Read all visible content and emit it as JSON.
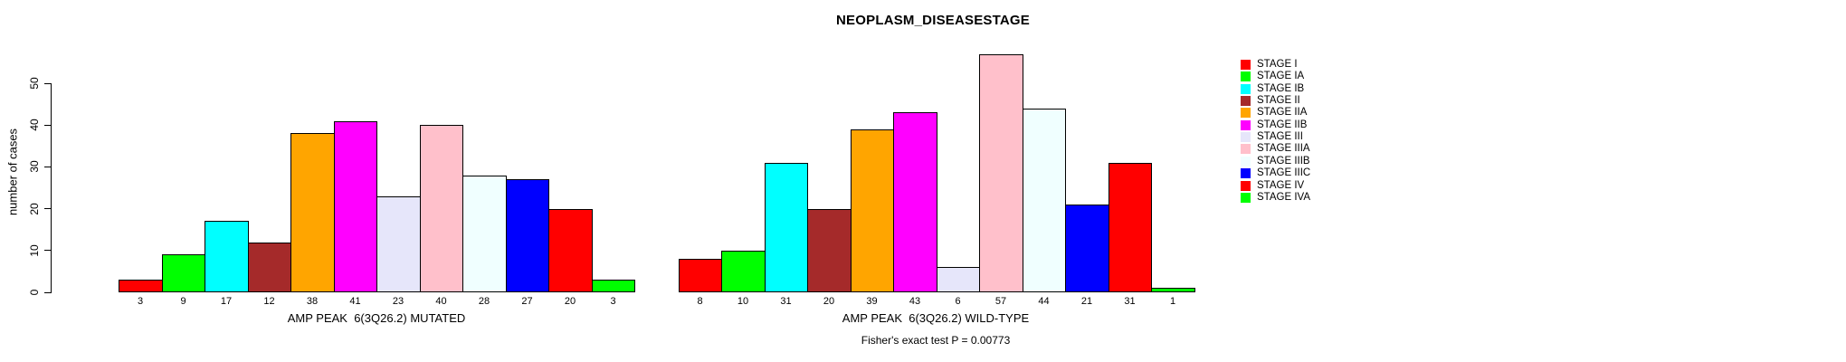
{
  "title": "NEOPLASM_DISEASESTAGE",
  "footer": "Fisher's exact test P = 0.00773",
  "y_axis": {
    "label": "number of cases",
    "ticks": [
      0,
      10,
      20,
      30,
      40,
      50
    ]
  },
  "legend": {
    "items": [
      {
        "label": "STAGE I",
        "color": "#FF0000"
      },
      {
        "label": "STAGE IA",
        "color": "#00FF00"
      },
      {
        "label": "STAGE IB",
        "color": "#00FFFF"
      },
      {
        "label": "STAGE II",
        "color": "#A52A2A"
      },
      {
        "label": "STAGE IIA",
        "color": "#FFA500"
      },
      {
        "label": "STAGE IIB",
        "color": "#FF00FF"
      },
      {
        "label": "STAGE III",
        "color": "#E6E6FA"
      },
      {
        "label": "STAGE IIIA",
        "color": "#FFC0CB"
      },
      {
        "label": "STAGE IIIB",
        "color": "#F0FFFF"
      },
      {
        "label": "STAGE IIIC",
        "color": "#0000FF"
      },
      {
        "label": "STAGE IV",
        "color": "#FF0000"
      },
      {
        "label": "STAGE IVA",
        "color": "#00FF00"
      }
    ]
  },
  "chart_data": {
    "type": "bar",
    "title": "NEOPLASM_DISEASESTAGE",
    "xlabel": "",
    "ylabel": "number of cases",
    "ylim": [
      0,
      57
    ],
    "yticks": [
      0,
      10,
      20,
      30,
      40,
      50
    ],
    "grid": false,
    "legend_position": "right",
    "categories": [
      "STAGE I",
      "STAGE IA",
      "STAGE IB",
      "STAGE II",
      "STAGE IIA",
      "STAGE IIB",
      "STAGE III",
      "STAGE IIIA",
      "STAGE IIIB",
      "STAGE IIIC",
      "STAGE IV",
      "STAGE IVA"
    ],
    "colors": [
      "#FF0000",
      "#00FF00",
      "#00FFFF",
      "#A52A2A",
      "#FFA500",
      "#FF00FF",
      "#E6E6FA",
      "#FFC0CB",
      "#F0FFFF",
      "#0000FF",
      "#FF0000",
      "#00FF00"
    ],
    "groups": [
      {
        "label": "AMP PEAK  6(3Q26.2) MUTATED",
        "values": [
          3,
          9,
          17,
          12,
          38,
          41,
          23,
          40,
          28,
          27,
          20,
          3
        ]
      },
      {
        "label": "AMP PEAK  6(3Q26.2) WILD-TYPE",
        "values": [
          8,
          10,
          31,
          20,
          39,
          43,
          6,
          57,
          44,
          21,
          31,
          1
        ]
      }
    ],
    "annotation": "Fisher's exact test P = 0.00773"
  }
}
